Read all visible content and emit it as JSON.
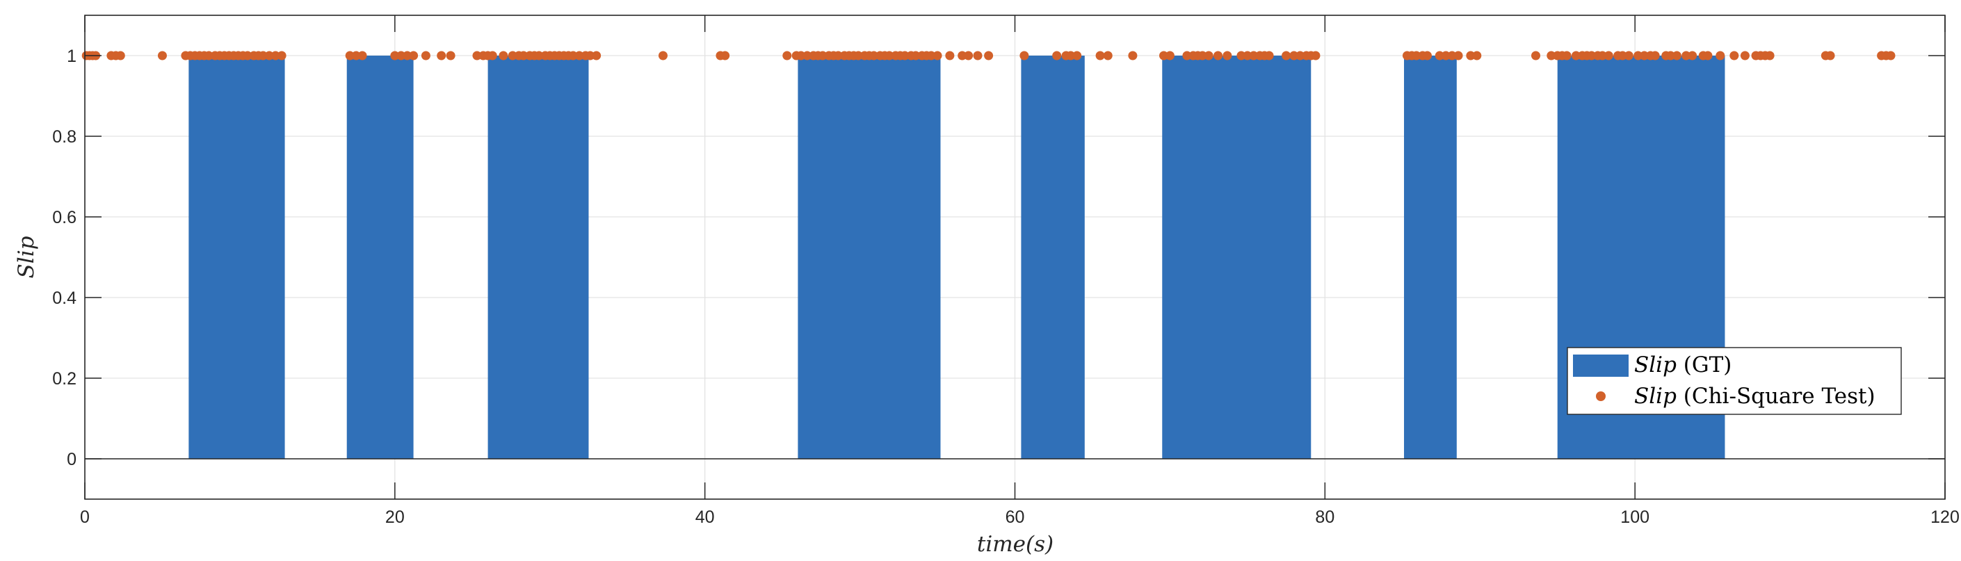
{
  "chart_data": {
    "type": "bar",
    "title": "",
    "xlabel": "time(s)",
    "ylabel": "Slip",
    "xlim": [
      0,
      120
    ],
    "ylim": [
      -0.1,
      1.1
    ],
    "xticks": [
      "0",
      "20",
      "40",
      "60",
      "80",
      "100",
      "120"
    ],
    "xtick_values": [
      0,
      20,
      40,
      60,
      80,
      100,
      120
    ],
    "yticks": [
      "0",
      "0.2",
      "0.4",
      "0.6",
      "0.8",
      "1"
    ],
    "ytick_values": [
      0,
      0.2,
      0.4,
      0.6,
      0.8,
      1
    ],
    "grid": true,
    "legend_position": "bottom-right",
    "colors": {
      "gt": "#3070b8",
      "chi": "#d2612a"
    },
    "series": [
      {
        "name": "Slip (GT)",
        "legend_italic": "Slip",
        "legend_rest": " (GT)",
        "kind": "bar",
        "value": 1,
        "intervals": [
          [
            6.7,
            12.9
          ],
          [
            16.9,
            21.2
          ],
          [
            26.0,
            32.5
          ],
          [
            46.0,
            55.2
          ],
          [
            60.4,
            64.5
          ],
          [
            69.5,
            79.1
          ],
          [
            85.1,
            88.5
          ],
          [
            95.0,
            105.8
          ]
        ]
      },
      {
        "name": "Slip (Chi-Square Test)",
        "legend_italic": "Slip",
        "legend_rest": " (Chi-Square Test)",
        "kind": "scatter",
        "y": 1,
        "x": [
          0.1,
          0.3,
          0.5,
          0.7,
          1.7,
          2.0,
          2.3,
          5.0,
          6.5,
          6.8,
          7.1,
          7.4,
          7.7,
          8.0,
          8.4,
          8.7,
          9.0,
          9.3,
          9.6,
          9.9,
          10.2,
          10.5,
          10.9,
          11.2,
          11.5,
          11.9,
          12.3,
          12.7,
          17.1,
          17.5,
          17.9,
          20.0,
          20.4,
          20.8,
          21.2,
          22.0,
          23.0,
          23.6,
          25.3,
          25.7,
          26.0,
          26.3,
          27.0,
          27.6,
          28.0,
          28.3,
          28.7,
          29.0,
          29.3,
          29.7,
          30.0,
          30.3,
          30.6,
          30.9,
          31.2,
          31.5,
          31.9,
          32.3,
          32.6,
          33.0,
          37.3,
          41.0,
          41.3,
          45.3,
          45.9,
          46.2,
          46.6,
          47.0,
          47.3,
          47.6,
          48.0,
          48.3,
          48.6,
          49.0,
          49.3,
          49.6,
          49.9,
          50.3,
          50.6,
          50.9,
          51.3,
          51.6,
          51.9,
          52.3,
          52.6,
          52.9,
          53.3,
          53.6,
          54.0,
          54.3,
          54.6,
          55.0,
          55.8,
          56.6,
          57.0,
          57.6,
          58.3,
          60.6,
          62.7,
          63.3,
          63.6,
          64.0,
          65.5,
          66.0,
          67.6,
          69.6,
          70.0,
          71.1,
          71.5,
          71.8,
          72.1,
          72.5,
          73.1,
          73.7,
          74.6,
          75.0,
          75.4,
          75.8,
          76.1,
          76.4,
          77.5,
          78.0,
          78.4,
          78.8,
          79.1,
          79.4,
          85.3,
          85.6,
          85.9,
          86.3,
          86.6,
          87.4,
          87.8,
          88.2,
          88.6,
          89.4,
          89.8,
          93.6,
          94.6,
          95.0,
          95.3,
          95.6,
          96.2,
          96.6,
          96.9,
          97.2,
          97.6,
          97.9,
          98.3,
          98.9,
          99.2,
          99.6,
          100.2,
          100.6,
          101.0,
          101.3,
          102.0,
          102.3,
          102.7,
          103.3,
          103.7,
          104.4,
          104.7,
          105.5,
          106.4,
          107.1,
          107.8,
          108.1,
          108.4,
          108.7,
          112.3,
          112.6,
          115.9,
          116.2,
          116.5
        ]
      }
    ]
  }
}
